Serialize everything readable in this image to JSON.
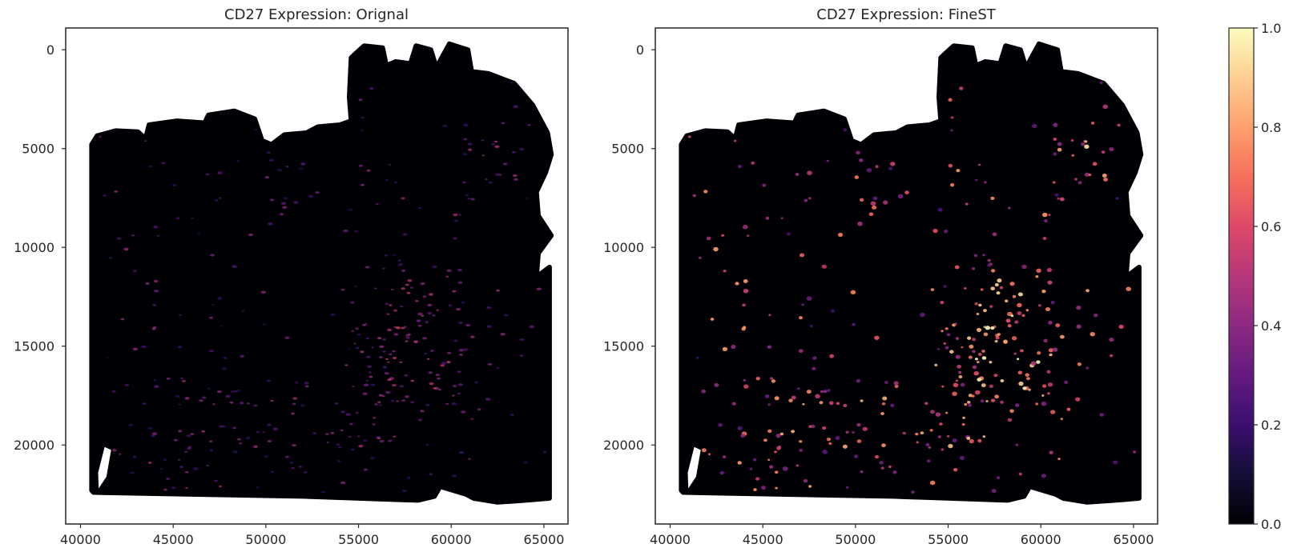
{
  "chart_data": [
    {
      "type": "scatter",
      "title": "CD27 Expression: Orignal",
      "xlabel": "",
      "ylabel": "",
      "xlim": [
        39200,
        66300
      ],
      "ylim": [
        24000,
        -1100
      ],
      "y_inverted": true,
      "xticks": [
        40000,
        45000,
        50000,
        55000,
        60000,
        65000
      ],
      "yticks": [
        0,
        5000,
        10000,
        15000,
        20000
      ],
      "grid": false,
      "colormap": "magma",
      "background_tissue_color": "#000004",
      "hotspot_intensity": 0.55
    },
    {
      "type": "scatter",
      "title": "CD27 Expression: FineST",
      "xlabel": "",
      "ylabel": "",
      "xlim": [
        39200,
        66300
      ],
      "ylim": [
        24000,
        -1100
      ],
      "y_inverted": true,
      "xticks": [
        40000,
        45000,
        50000,
        55000,
        60000,
        65000
      ],
      "yticks": [
        0,
        5000,
        10000,
        15000,
        20000
      ],
      "grid": false,
      "colormap": "magma",
      "background_tissue_color": "#000004",
      "hotspot_intensity": 1.0
    }
  ],
  "colorbar": {
    "min": 0.0,
    "max": 1.0,
    "ticks": [
      "0.0",
      "0.2",
      "0.4",
      "0.6",
      "0.8",
      "1.0"
    ],
    "colormap": "magma"
  }
}
